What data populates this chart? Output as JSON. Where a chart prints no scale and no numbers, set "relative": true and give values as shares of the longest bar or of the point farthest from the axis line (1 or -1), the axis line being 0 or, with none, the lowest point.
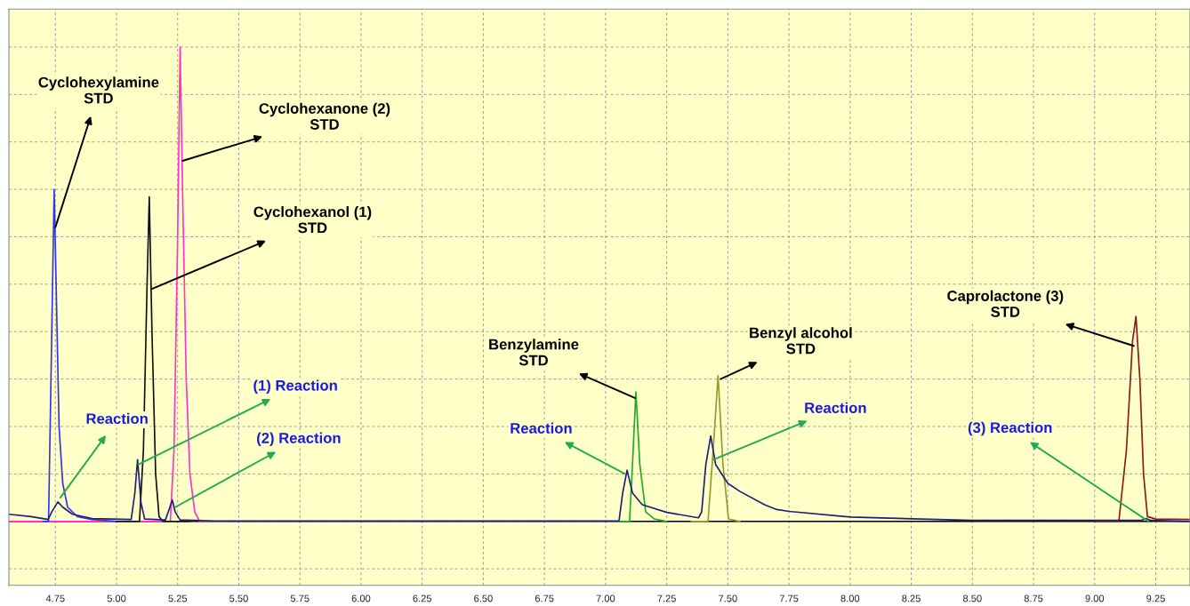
{
  "chart_data": {
    "type": "line",
    "relative": true,
    "xlim": [
      4.56,
      9.39
    ],
    "xticks": [
      4.75,
      {
        "value": 5.0,
        "label": "5.00"
      },
      5.25,
      {
        "value": 5.5,
        "label": "5.50"
      },
      5.75,
      {
        "value": 6.0,
        "label": "6.00"
      },
      6.25,
      {
        "value": 6.5,
        "label": "6.50"
      },
      6.75,
      {
        "value": 7.0,
        "label": "7.00"
      },
      7.25,
      {
        "value": 7.5,
        "label": "7.50"
      },
      7.75,
      {
        "value": 8.0,
        "label": "8.00"
      },
      8.25,
      {
        "value": 8.5,
        "label": "8.50"
      },
      8.75,
      {
        "value": 9.0,
        "label": "9.00"
      },
      9.25
    ],
    "tick_labels": "x",
    "grid": true,
    "marker": "none",
    "line_style": "solid",
    "series": [
      {
        "color": "#ff33cc",
        "x": [
          4.56,
          5.22,
          5.235,
          5.25,
          5.26,
          5.27,
          5.285,
          5.3,
          5.32,
          5.34,
          5.45
        ],
        "values": [
          0,
          0,
          0.15,
          0.6,
          1.0,
          0.7,
          0.3,
          0.1,
          0.02,
          0,
          0
        ]
      },
      {
        "color": "#3333ee",
        "x": [
          4.7,
          4.722,
          4.732,
          4.745,
          4.755,
          4.765,
          4.78,
          4.8,
          4.84,
          4.9,
          5.0
        ],
        "values": [
          0,
          0,
          0.3,
          0.7,
          0.45,
          0.2,
          0.08,
          0.03,
          0.01,
          0.004,
          0
        ]
      },
      {
        "color": "#111111",
        "x": [
          5.0,
          5.094,
          5.11,
          5.125,
          5.134,
          5.145,
          5.16,
          5.174,
          5.19,
          5.3
        ],
        "values": [
          0,
          0,
          0.15,
          0.5,
          0.684,
          0.4,
          0.1,
          0.01,
          0,
          0
        ]
      },
      {
        "color": "#22aa22",
        "x": [
          7.05,
          7.098,
          7.11,
          7.124,
          7.14,
          7.164,
          7.2,
          7.25
        ],
        "values": [
          0,
          0,
          0.12,
          0.273,
          0.12,
          0.02,
          0.005,
          0
        ]
      },
      {
        "color": "#999933",
        "x": [
          7.35,
          7.419,
          7.44,
          7.46,
          7.48,
          7.503,
          7.55
        ],
        "values": [
          0,
          0,
          0.15,
          0.307,
          0.12,
          0.005,
          0
        ]
      },
      {
        "color": "#8b1a1a",
        "x": [
          9.0,
          9.099,
          9.13,
          9.155,
          9.169,
          9.185,
          9.2,
          9.216,
          9.25,
          9.39
        ],
        "values": [
          0,
          0,
          0.15,
          0.38,
          0.432,
          0.3,
          0.1,
          0.01,
          0.005,
          0.004
        ]
      },
      {
        "color": "#1f1f7a",
        "x": [
          4.56,
          4.65,
          4.72,
          4.735,
          4.76,
          4.78,
          4.82,
          4.9,
          5.06,
          5.075,
          5.086,
          5.1,
          5.115,
          5.2,
          5.215,
          5.228,
          5.24,
          5.26,
          5.4,
          7.055,
          7.07,
          7.088,
          7.11,
          7.15,
          7.25,
          7.38,
          7.393,
          7.41,
          7.43,
          7.45,
          7.5,
          7.55,
          7.65,
          7.7,
          7.75,
          8.0,
          8.5,
          9.19,
          9.21,
          9.23,
          9.39
        ],
        "values": [
          0.015,
          0.01,
          0.004,
          0.02,
          0.041,
          0.03,
          0.015,
          0.006,
          0.004,
          0.06,
          0.13,
          0.04,
          0.005,
          0.003,
          0.025,
          0.045,
          0.02,
          0.003,
          0.001,
          0.001,
          0.06,
          0.108,
          0.06,
          0.035,
          0.019,
          0.0075,
          0.02,
          0.12,
          0.18,
          0.12,
          0.08,
          0.063,
          0.035,
          0.025,
          0.021,
          0.009,
          0.002,
          0.002,
          0.006,
          0.002,
          0
        ]
      }
    ],
    "annotations": [
      {
        "text": "Cyclohexylamine\nSTD",
        "x": 4.75,
        "y": 0.62
      },
      {
        "text": "Cyclohexanone (2)\nSTD",
        "x": 5.27,
        "y": 0.76
      },
      {
        "text": "Cyclohexanol (1)\nSTD",
        "x": 5.145,
        "y": 0.49
      },
      {
        "text": "Reaction",
        "x": 4.77,
        "y": 0.05
      },
      {
        "text": "(1) Reaction",
        "x": 5.09,
        "y": 0.12
      },
      {
        "text": "(2) Reaction",
        "x": 5.24,
        "y": 0.03
      },
      {
        "text": "Benzylamine\nSTD",
        "x": 7.12,
        "y": 0.26
      },
      {
        "text": "Benzyl alcohol\nSTD",
        "x": 7.47,
        "y": 0.3
      },
      {
        "text": "Reaction",
        "x": 7.08,
        "y": 0.1
      },
      {
        "text": "Reaction",
        "x": 7.44,
        "y": 0.13
      },
      {
        "text": "Caprolactone (3)\nSTD",
        "x": 9.16,
        "y": 0.37
      },
      {
        "text": "(3) Reaction",
        "x": 9.22,
        "y": 0
      }
    ]
  }
}
